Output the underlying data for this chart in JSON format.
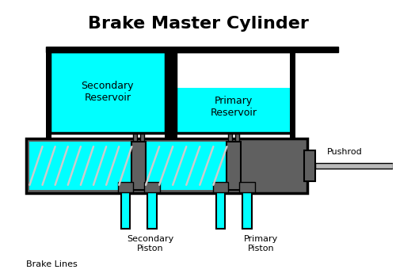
{
  "title": "Brake Master Cylinder",
  "title_fontsize": 16,
  "title_fontweight": "bold",
  "bg_color": "#ffffff",
  "cyan": "#00FFFF",
  "dark_gray": "#606060",
  "black": "#000000",
  "light_gray": "#bbbbbb",
  "spring_color": "#cccccc",
  "label_fontsize": 8,
  "labels": {
    "secondary_reservoir": "Secondary\nReservoir",
    "primary_reservoir": "Primary\nReservoir",
    "secondary_piston": "Secondary\nPiston",
    "primary_piston": "Primary\nPiston",
    "brake_lines": "Brake Lines",
    "pushrod": "Pushrod"
  }
}
